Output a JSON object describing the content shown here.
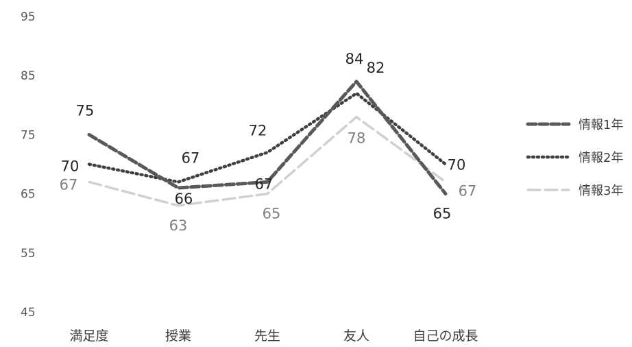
{
  "chart_data": {
    "type": "line",
    "title": "",
    "xlabel": "",
    "ylabel": "",
    "categories": [
      "満足度",
      "授業",
      "先生",
      "友人",
      "自己の成長"
    ],
    "y_ticks": [
      "95",
      "85",
      "75",
      "65",
      "55",
      "45"
    ],
    "ylim": [
      45,
      95
    ],
    "grid": false,
    "legend_position": "right",
    "series": [
      {
        "name": "情報1年",
        "values": [
          75,
          66,
          67,
          84,
          65
        ],
        "labels": [
          "75",
          "66",
          "67",
          "84",
          "65"
        ],
        "color": "#595959",
        "dash": "dashed"
      },
      {
        "name": "情報2年",
        "values": [
          70,
          67,
          72,
          82,
          70
        ],
        "labels": [
          "70",
          "67",
          "72",
          "82",
          "70"
        ],
        "color": "#404040",
        "dash": "dotted"
      },
      {
        "name": "情報3年",
        "values": [
          67,
          63,
          65,
          78,
          67
        ],
        "labels": [
          "67",
          "63",
          "65",
          "78",
          "67"
        ],
        "color": "#d0d0d0",
        "dash": "long-dash"
      }
    ]
  }
}
